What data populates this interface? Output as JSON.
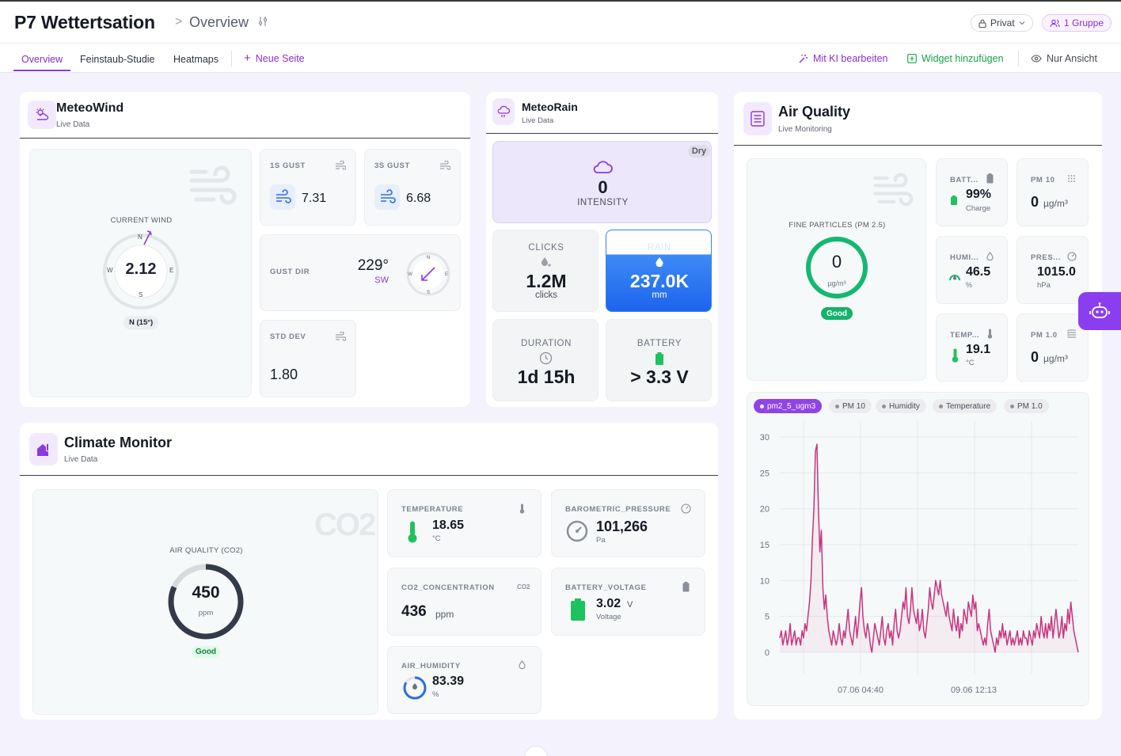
{
  "header": {
    "title": "P7 Wettertsation",
    "separator": ">",
    "breadcrumb": "Overview",
    "privacy_label": "Privat",
    "group_label": "1 Gruppe"
  },
  "tabs": [
    {
      "label": "Overview"
    },
    {
      "label": "Feinstaub-Studie"
    },
    {
      "label": "Heatmaps"
    }
  ],
  "new_page_label": "Neue Seite",
  "actions": {
    "ai_edit": "Mit KI bearbeiten",
    "add_widget": "Widget hinzufügen",
    "view_only": "Nur Ansicht"
  },
  "meteowind": {
    "title": "MeteoWind",
    "subtitle": "Live Data",
    "current_label": "CURRENT WIND",
    "speed": "2.12",
    "direction": "N (15°)",
    "compass": {
      "n": "N",
      "s": "S",
      "e": "E",
      "w": "W"
    },
    "gust1_label": "1S GUST",
    "gust1_value": "7.31",
    "gust3_label": "3S GUST",
    "gust3_value": "6.68",
    "gustdir_label": "GUST DIR",
    "gustdir_value": "229°",
    "gustdir_card": "SW",
    "stddev_label": "STD DEV",
    "stddev_value": "1.80"
  },
  "meteorain": {
    "title": "MeteoRain",
    "subtitle": "Live Data",
    "status": "Dry",
    "intensity_value": "0",
    "intensity_label": "INTENSITY",
    "clicks_label": "CLICKS",
    "clicks_value": "1.2M",
    "clicks_unit": "clicks",
    "rain_label": "RAIN",
    "rain_value": "237.0K",
    "rain_unit": "mm",
    "duration_label": "DURATION",
    "duration_value": "1d 15h",
    "battery_label": "BATTERY",
    "battery_value": "> 3.3 V"
  },
  "airquality": {
    "title": "Air Quality",
    "subtitle": "Live Monitoring",
    "fine_label": "FINE PARTICLES (PM 2.5)",
    "fine_value": "0",
    "fine_unit": "µg/m³",
    "fine_status": "Good",
    "battery_label": "BATT...",
    "battery_value": "99%",
    "battery_sub": "Charge",
    "pm10_label": "PM 10",
    "pm10_value": "0",
    "pm10_unit": "µg/m³",
    "humidity_label": "HUMI...",
    "humidity_value": "46.5",
    "humidity_unit": "%",
    "pressure_label": "PRES...",
    "pressure_value": "1015.0",
    "pressure_unit": "hPa",
    "temp_label": "TEMP...",
    "temp_value": "19.1",
    "temp_unit": "°C",
    "pm1_label": "PM 1.0",
    "pm1_value": "0",
    "pm1_unit": "µg/m³",
    "chips": [
      "pm2_5_ugm3",
      "PM 10",
      "Humidity",
      "Temperature",
      "PM 1.0"
    ]
  },
  "climate": {
    "title": "Climate Monitor",
    "subtitle": "Live Data",
    "co2_icon_text": "CO2",
    "aq_label": "AIR QUALITY (CO2)",
    "aq_value": "450",
    "aq_unit": "ppm",
    "aq_status": "Good",
    "temperature_label": "TEMPERATURE",
    "temperature_value": "18.65",
    "temperature_unit": "°C",
    "pressure_label": "BAROMETRIC_PRESSURE",
    "pressure_value": "101,266",
    "pressure_unit": "Pa",
    "co2_label": "CO2_CONCENTRATION",
    "co2_value": "436",
    "co2_unit": "ppm",
    "voltage_label": "BATTERY_VOLTAGE",
    "voltage_value": "3.02",
    "voltage_unit": "V",
    "voltage_sub": "Voltage",
    "humidity_label": "AIR_HUMIDITY",
    "humidity_value": "83.39",
    "humidity_unit": "%"
  },
  "colors": {
    "accent": "#8b3bdc",
    "rain_blue": "#1f6df0",
    "good_green": "#17b26a",
    "line_pink": "#c8347f"
  },
  "chart_data": {
    "type": "line",
    "series": [
      {
        "name": "pm2_5_ugm3",
        "values": [
          2,
          3,
          1,
          2,
          3,
          1,
          2,
          4,
          1,
          2,
          3,
          1,
          2,
          2,
          1,
          3,
          2,
          4,
          3,
          5,
          7,
          10,
          16,
          20,
          28,
          29,
          20,
          14,
          17,
          9,
          6,
          8,
          5,
          3,
          2,
          1,
          3,
          2,
          1,
          2,
          4,
          2,
          1,
          3,
          2,
          4,
          6,
          3,
          2,
          1,
          3,
          5,
          2,
          4,
          7,
          9,
          5,
          3,
          2,
          4,
          3,
          1,
          0,
          2,
          4,
          3,
          2,
          1,
          3,
          5,
          2,
          1,
          3,
          4,
          2,
          3,
          1,
          4,
          6,
          3,
          2,
          3,
          5,
          7,
          6,
          9,
          5,
          4,
          6,
          9,
          6,
          5,
          4,
          6,
          3,
          4,
          6,
          3,
          2,
          4,
          6,
          9,
          7,
          6,
          8,
          10,
          9,
          8,
          10,
          8,
          7,
          6,
          5,
          7,
          5,
          4,
          3,
          6,
          4,
          3,
          5,
          2,
          4,
          3,
          6,
          5,
          4,
          7,
          6,
          5,
          8,
          6,
          7,
          3,
          4,
          3,
          2,
          1,
          2,
          1,
          4,
          6,
          3,
          2,
          1,
          0,
          2,
          1,
          3,
          2,
          4,
          2,
          3,
          1,
          2,
          3,
          1,
          2,
          1,
          2,
          3,
          1,
          2,
          1,
          3,
          2,
          2,
          1,
          3,
          2,
          1,
          3,
          2,
          4,
          3,
          2,
          5,
          3,
          2,
          4,
          2,
          4,
          3,
          5,
          2,
          4,
          6,
          4,
          2,
          3,
          5,
          2,
          4,
          3,
          6,
          4,
          7,
          5,
          3,
          2,
          1,
          0
        ]
      }
    ],
    "x_ticks": [
      "07.06 04:40",
      "09.06 12:13"
    ],
    "ylim": [
      0,
      30
    ],
    "yticks": [
      0,
      5,
      10,
      15,
      20,
      25,
      30
    ],
    "grid": true
  }
}
